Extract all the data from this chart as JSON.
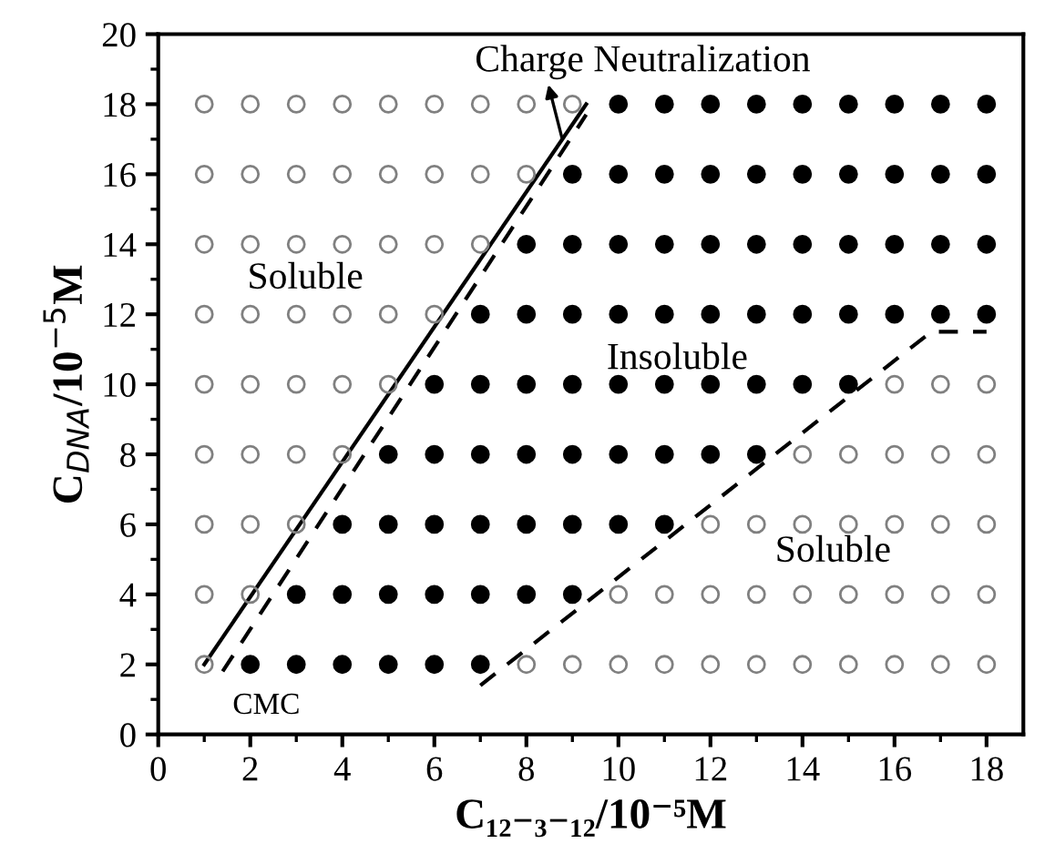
{
  "chart_data": {
    "type": "scatter",
    "xlabel": "C₁₂₋₃₋₁₂/10⁻⁵M",
    "ylabel": "C$_{DNA}$/10$^{−5}$M",
    "xlim": [
      0,
      18.8
    ],
    "ylim": [
      0,
      20
    ],
    "xticks": [
      0,
      2,
      4,
      6,
      8,
      10,
      12,
      14,
      16,
      18
    ],
    "yticks": [
      0,
      2,
      4,
      6,
      8,
      10,
      12,
      14,
      16,
      18,
      20
    ],
    "grid": false,
    "legend": false,
    "marker": "circle",
    "series": [
      {
        "color": "#808080",
        "x": [
          1,
          8,
          9,
          10,
          11,
          12,
          13,
          14,
          15,
          16,
          17,
          18,
          1,
          2,
          10,
          11,
          12,
          13,
          14,
          15,
          16,
          17,
          18,
          1,
          2,
          3,
          12,
          13,
          14,
          15,
          16,
          17,
          18,
          1,
          2,
          3,
          4,
          14,
          15,
          16,
          17,
          18,
          1,
          2,
          3,
          4,
          5,
          16,
          17,
          18,
          1,
          2,
          3,
          4,
          5,
          6,
          1,
          2,
          3,
          4,
          5,
          6,
          7,
          1,
          2,
          3,
          4,
          5,
          6,
          7,
          8,
          1,
          2,
          3,
          4,
          5,
          6,
          7,
          8,
          9
        ],
        "values": [
          2,
          2,
          2,
          2,
          2,
          2,
          2,
          2,
          2,
          2,
          2,
          2,
          4,
          4,
          4,
          4,
          4,
          4,
          4,
          4,
          4,
          4,
          4,
          6,
          6,
          6,
          6,
          6,
          6,
          6,
          6,
          6,
          6,
          8,
          8,
          8,
          8,
          8,
          8,
          8,
          8,
          8,
          10,
          10,
          10,
          10,
          10,
          10,
          10,
          10,
          12,
          12,
          12,
          12,
          12,
          12,
          14,
          14,
          14,
          14,
          14,
          14,
          14,
          16,
          16,
          16,
          16,
          16,
          16,
          16,
          16,
          18,
          18,
          18,
          18,
          18,
          18,
          18,
          18,
          18
        ]
      },
      {
        "color": "#000000",
        "x": [
          2,
          3,
          4,
          5,
          6,
          7,
          3,
          4,
          5,
          6,
          7,
          8,
          9,
          4,
          5,
          6,
          7,
          8,
          9,
          10,
          11,
          5,
          6,
          7,
          8,
          9,
          10,
          11,
          12,
          13,
          6,
          7,
          8,
          9,
          10,
          11,
          12,
          13,
          14,
          15,
          7,
          8,
          9,
          10,
          11,
          12,
          13,
          14,
          15,
          16,
          17,
          18,
          8,
          9,
          10,
          11,
          12,
          13,
          14,
          15,
          16,
          17,
          18,
          9,
          10,
          11,
          12,
          13,
          14,
          15,
          16,
          17,
          18,
          10,
          11,
          12,
          13,
          14,
          15,
          16,
          17,
          18
        ],
        "values": [
          2,
          2,
          2,
          2,
          2,
          2,
          4,
          4,
          4,
          4,
          4,
          4,
          4,
          6,
          6,
          6,
          6,
          6,
          6,
          6,
          6,
          8,
          8,
          8,
          8,
          8,
          8,
          8,
          8,
          8,
          10,
          10,
          10,
          10,
          10,
          10,
          10,
          10,
          10,
          10,
          12,
          12,
          12,
          12,
          12,
          12,
          12,
          12,
          12,
          12,
          12,
          12,
          14,
          14,
          14,
          14,
          14,
          14,
          14,
          14,
          14,
          14,
          14,
          16,
          16,
          16,
          16,
          16,
          16,
          16,
          16,
          16,
          16,
          18,
          18,
          18,
          18,
          18,
          18,
          18,
          18,
          18
        ]
      },
      {
        "type": "line",
        "color": "#000000",
        "marker": "none",
        "line_style": "solid",
        "x": [
          1,
          9.3
        ],
        "values": [
          2,
          18
        ]
      },
      {
        "type": "line",
        "color": "#000000",
        "marker": "none",
        "line_style": "dashed",
        "x": [
          1.4,
          9.3
        ],
        "values": [
          1.8,
          17.7
        ]
      },
      {
        "type": "line",
        "color": "#000000",
        "marker": "none",
        "line_style": "dashed",
        "x": [
          7,
          16.8,
          18
        ],
        "values": [
          1.4,
          11.5,
          11.5
        ]
      }
    ],
    "annotations": [
      "Charge Neutralization",
      "Soluble",
      "Insoluble",
      "Soluble",
      "CMC"
    ]
  }
}
